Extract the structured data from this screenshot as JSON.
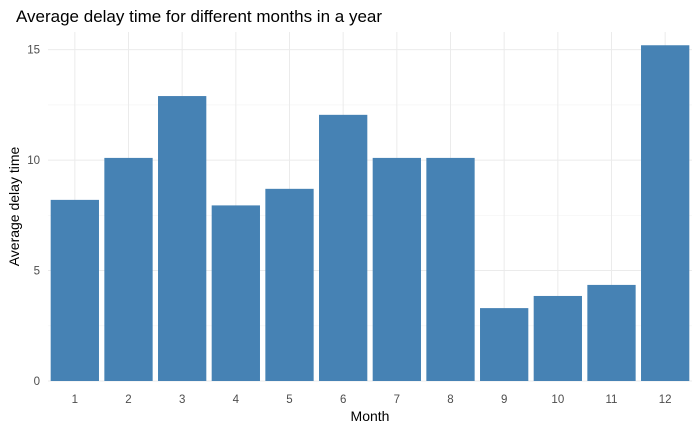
{
  "chart_data": {
    "type": "bar",
    "title": "Average delay time for different months in a year",
    "xlabel": "Month",
    "ylabel": "Average delay time",
    "categories": [
      "1",
      "2",
      "3",
      "4",
      "5",
      "6",
      "7",
      "8",
      "9",
      "10",
      "11",
      "12"
    ],
    "values": [
      8.2,
      10.1,
      12.9,
      7.95,
      8.7,
      12.05,
      10.1,
      10.1,
      3.3,
      3.85,
      4.35,
      15.2
    ],
    "ylim": [
      0,
      15.8
    ],
    "yticks": [
      "0",
      "5",
      "10",
      "15"
    ],
    "grid": true,
    "legend": "none",
    "bar_color": "#4682B4"
  }
}
